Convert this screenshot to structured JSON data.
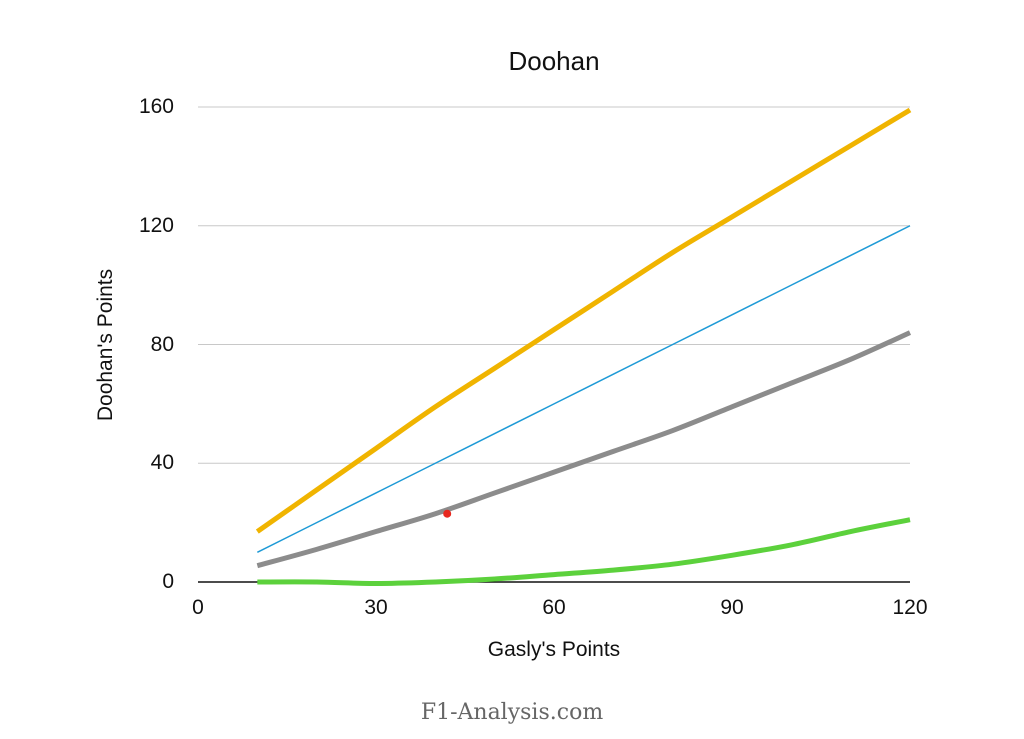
{
  "chart_data": {
    "type": "line",
    "title": "Doohan",
    "xlabel": "Gasly's Points",
    "ylabel": "Doohan's Points",
    "xlim": [
      0,
      120
    ],
    "ylim": [
      0,
      160
    ],
    "x_ticks": [
      0,
      30,
      60,
      90,
      120
    ],
    "y_ticks": [
      0,
      40,
      80,
      120,
      160
    ],
    "grid": "horizontal",
    "legend": "none",
    "x": [
      10,
      20,
      30,
      40,
      50,
      60,
      70,
      80,
      90,
      100,
      110,
      120
    ],
    "series": [
      {
        "name": "upper",
        "color": "#f0b400",
        "width": 5,
        "values": [
          17,
          31,
          45,
          59,
          72,
          85,
          98,
          111,
          123,
          135,
          147,
          159
        ]
      },
      {
        "name": "parity",
        "color": "#1e9ad6",
        "width": 1.5,
        "values": [
          10,
          20,
          30,
          40,
          50,
          60,
          70,
          80,
          90,
          100,
          110,
          120
        ]
      },
      {
        "name": "central",
        "color": "#8c8c8c",
        "width": 5,
        "values": [
          5.5,
          11,
          17,
          23,
          30,
          37,
          44,
          51,
          59,
          67,
          75,
          84
        ]
      },
      {
        "name": "lower",
        "color": "#5cd13c",
        "width": 5,
        "values": [
          0,
          0,
          -0.5,
          0,
          1,
          2.5,
          4,
          6,
          9,
          12.5,
          17,
          21
        ]
      }
    ],
    "points": [
      {
        "name": "actual",
        "color": "#e8281e",
        "x": 42,
        "y": 23
      }
    ]
  },
  "footer": "F1-Analysis.com"
}
